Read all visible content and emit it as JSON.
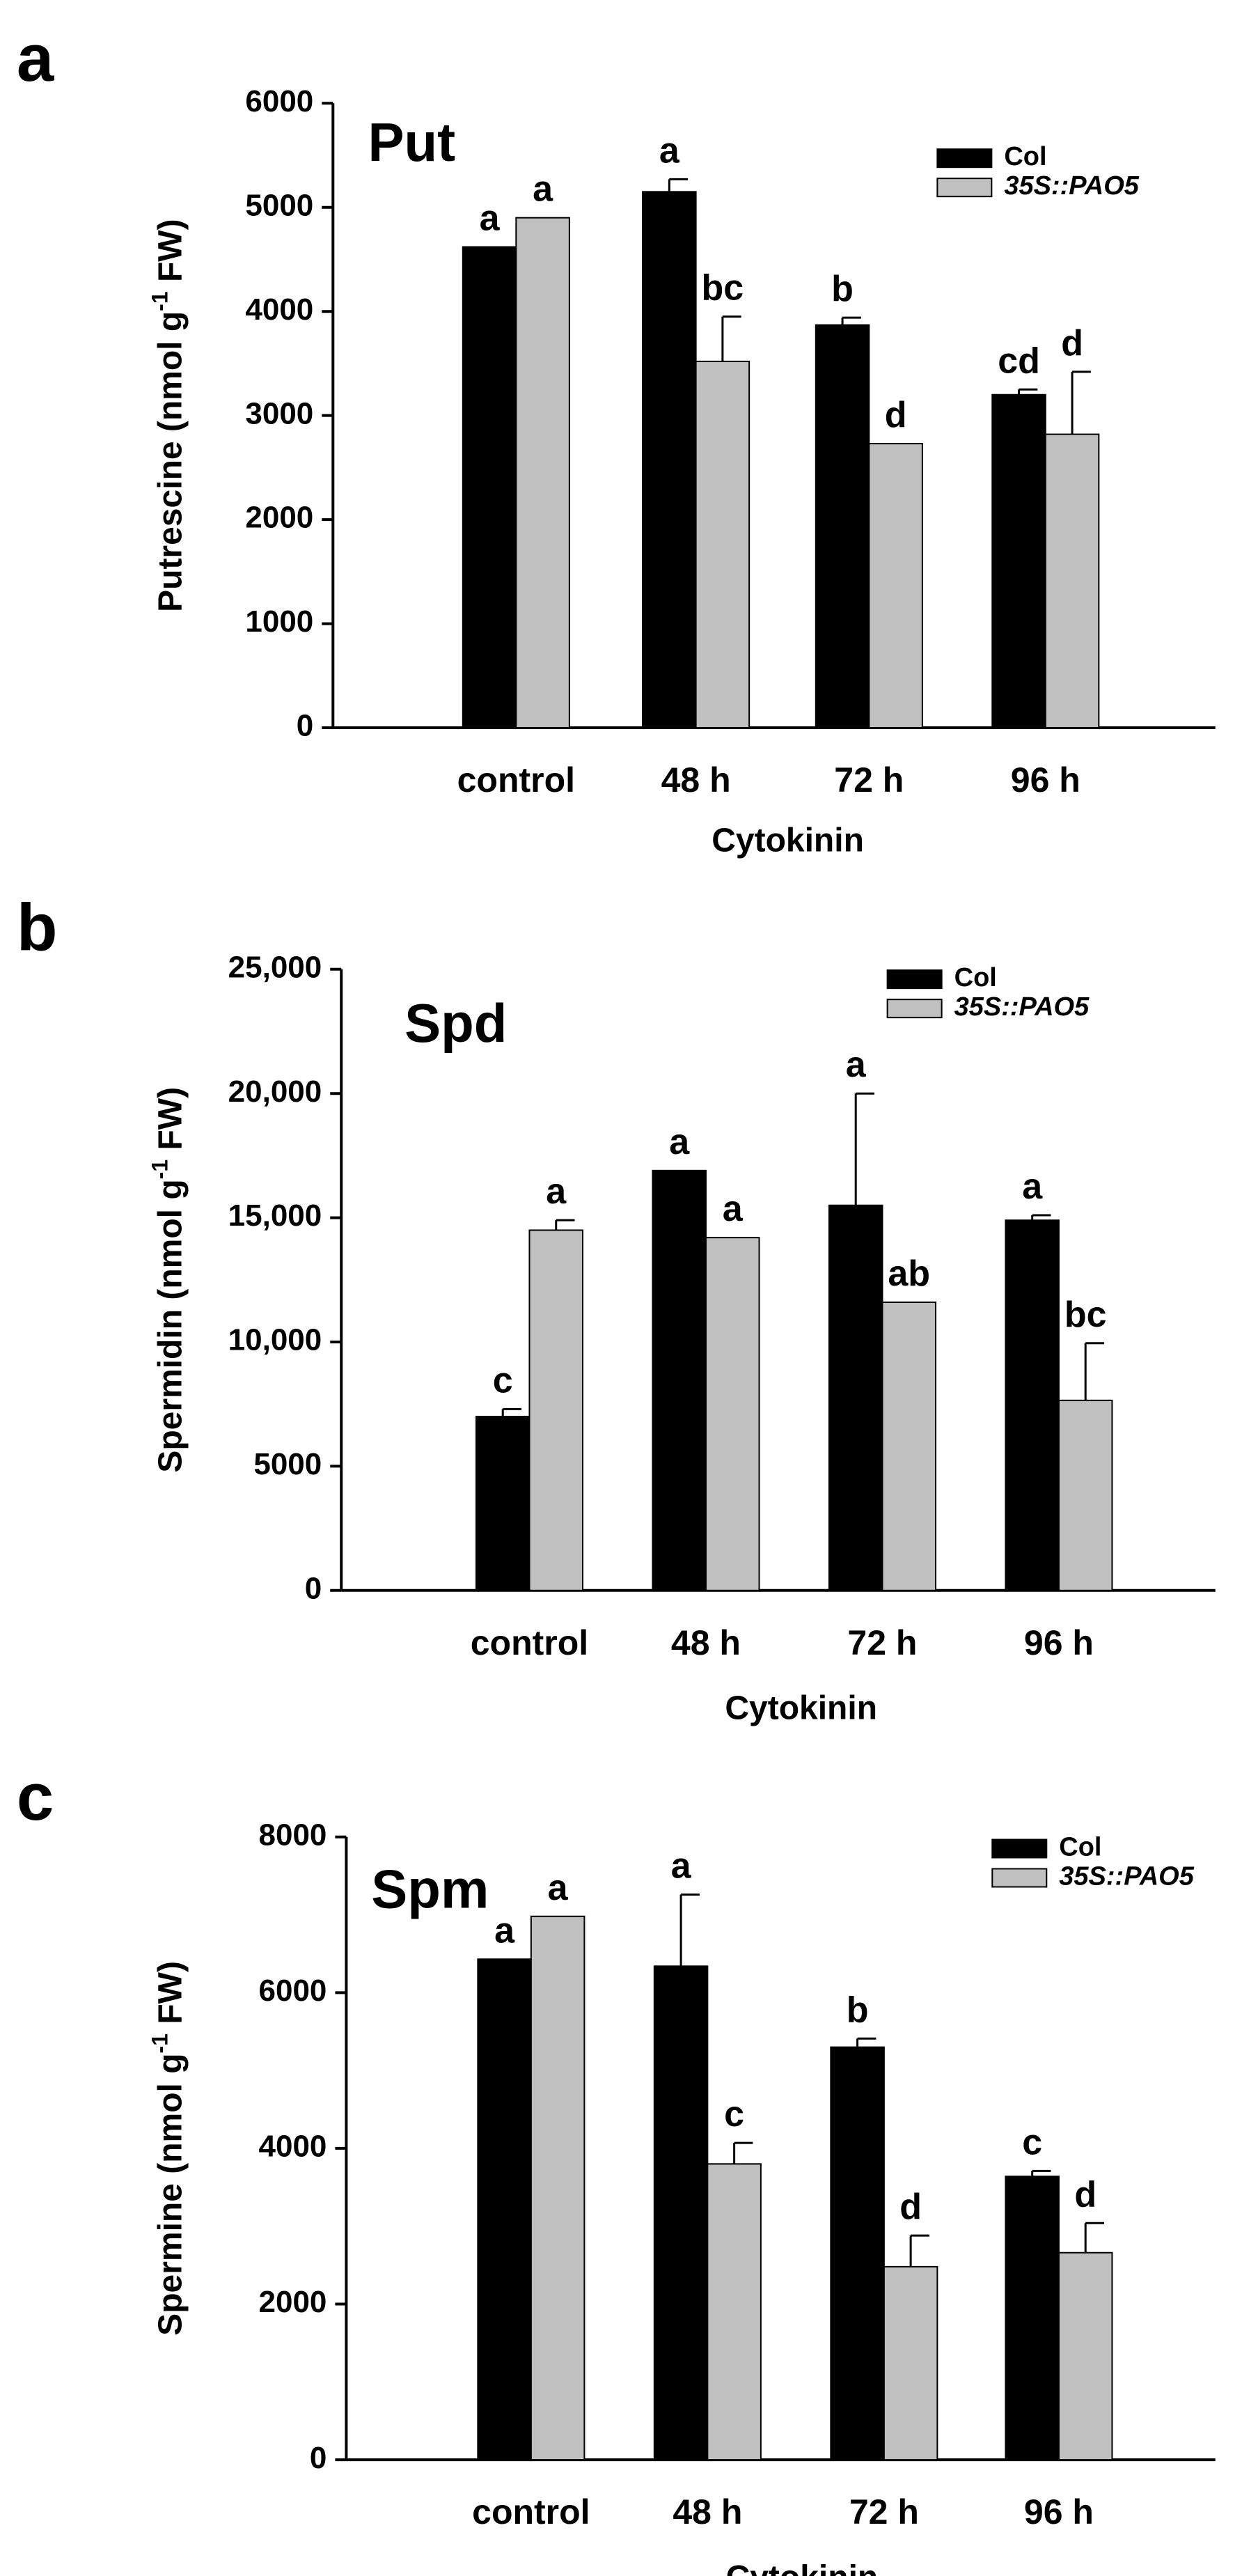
{
  "colors": {
    "col": "#000000",
    "pao5": "#c0c0c0",
    "axis": "#000000",
    "err": "#000000"
  },
  "legend": {
    "col_label": "Col",
    "pao5_label": "35S::PAO5"
  },
  "chart_data": [
    {
      "type": "bar",
      "panel": "a",
      "title": "Put",
      "xlabel": "Cytokinin",
      "ylabel_parts": [
        "Putrescine (nmol g",
        "-1",
        " FW)"
      ],
      "categories": [
        "control",
        "48 h",
        "72 h",
        "96 h"
      ],
      "ylim": [
        0,
        6000
      ],
      "yticks": [
        0,
        1000,
        2000,
        3000,
        4000,
        5000,
        6000
      ],
      "ytick_labels": [
        "0",
        "1000",
        "2000",
        "3000",
        "4000",
        "5000",
        "6000"
      ],
      "series": [
        {
          "name": "Col",
          "values": [
            4620,
            5150,
            3870,
            3200
          ],
          "errors": [
            0,
            120,
            70,
            50
          ],
          "letters": [
            "a",
            "a",
            "b",
            "cd"
          ]
        },
        {
          "name": "35S::PAO5",
          "values": [
            4900,
            3520,
            2730,
            2820
          ],
          "errors": [
            0,
            430,
            0,
            600
          ],
          "letters": [
            "a",
            "bc",
            "d",
            "d"
          ]
        }
      ]
    },
    {
      "type": "bar",
      "panel": "b",
      "title": "Spd",
      "xlabel": "Cytokinin",
      "ylabel_parts": [
        "Spermidin (nmol g",
        "-1",
        " FW)"
      ],
      "categories": [
        "control",
        "48 h",
        "72 h",
        "96 h"
      ],
      "ylim": [
        0,
        25000
      ],
      "yticks": [
        0,
        5000,
        10000,
        15000,
        20000,
        25000
      ],
      "ytick_labels": [
        "0",
        "5000",
        "10,000",
        "15,000",
        "20,000",
        "25,000"
      ],
      "series": [
        {
          "name": "Col",
          "values": [
            7000,
            16900,
            15500,
            14900
          ],
          "errors": [
            300,
            0,
            4500,
            200
          ],
          "letters": [
            "c",
            "a",
            "a",
            "a"
          ]
        },
        {
          "name": "35S::PAO5",
          "values": [
            14500,
            14200,
            11600,
            7650
          ],
          "errors": [
            400,
            0,
            0,
            2300
          ],
          "letters": [
            "a",
            "a",
            "ab",
            "bc"
          ]
        }
      ]
    },
    {
      "type": "bar",
      "panel": "c",
      "title": "Spm",
      "xlabel": "Cytokinin",
      "ylabel_parts": [
        "Spermine (nmol g",
        "-1",
        " FW)"
      ],
      "categories": [
        "control",
        "48 h",
        "72 h",
        "96 h"
      ],
      "ylim": [
        0,
        8000
      ],
      "yticks": [
        0,
        2000,
        4000,
        6000,
        8000
      ],
      "ytick_labels": [
        "0",
        "2000",
        "4000",
        "6000",
        "8000"
      ],
      "series": [
        {
          "name": "Col",
          "values": [
            6430,
            6340,
            5300,
            3640
          ],
          "errors": [
            0,
            920,
            110,
            70
          ],
          "letters": [
            "a",
            "a",
            "b",
            "c"
          ]
        },
        {
          "name": "35S::PAO5",
          "values": [
            6980,
            3800,
            2480,
            2660
          ],
          "errors": [
            0,
            270,
            400,
            380
          ],
          "letters": [
            "a",
            "c",
            "d",
            "d"
          ]
        }
      ]
    }
  ]
}
